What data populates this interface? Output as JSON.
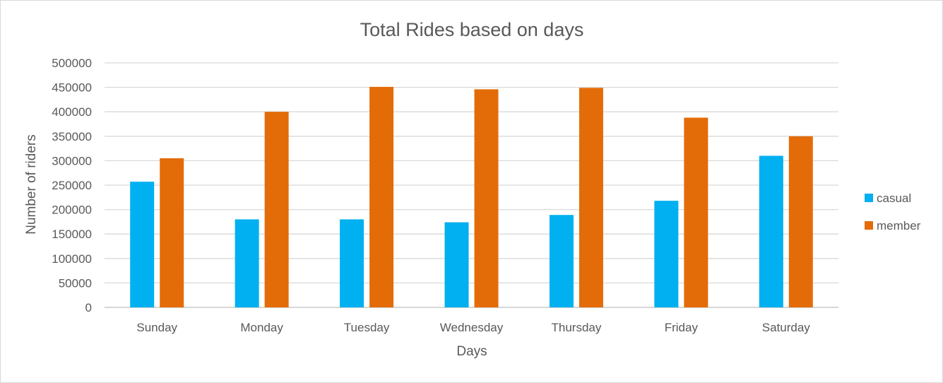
{
  "chart_data": {
    "type": "bar",
    "title": "Total Rides based on days",
    "xlabel": "Days",
    "ylabel": "Number of riders",
    "categories": [
      "Sunday",
      "Monday",
      "Tuesday",
      "Wednesday",
      "Thursday",
      "Friday",
      "Saturday"
    ],
    "series": [
      {
        "name": "casual",
        "color": "#00B0F0",
        "values": [
          257000,
          180000,
          180000,
          174000,
          189000,
          218000,
          310000
        ]
      },
      {
        "name": "member",
        "color": "#E36C09",
        "values": [
          305000,
          400000,
          451000,
          446000,
          449000,
          388000,
          350000
        ]
      }
    ],
    "ylim": [
      0,
      500000
    ],
    "ytick_step": 50000,
    "yticks": [
      "0",
      "50000",
      "100000",
      "150000",
      "200000",
      "250000",
      "300000",
      "350000",
      "400000",
      "450000",
      "500000"
    ],
    "grid": true,
    "legend_position": "right"
  }
}
